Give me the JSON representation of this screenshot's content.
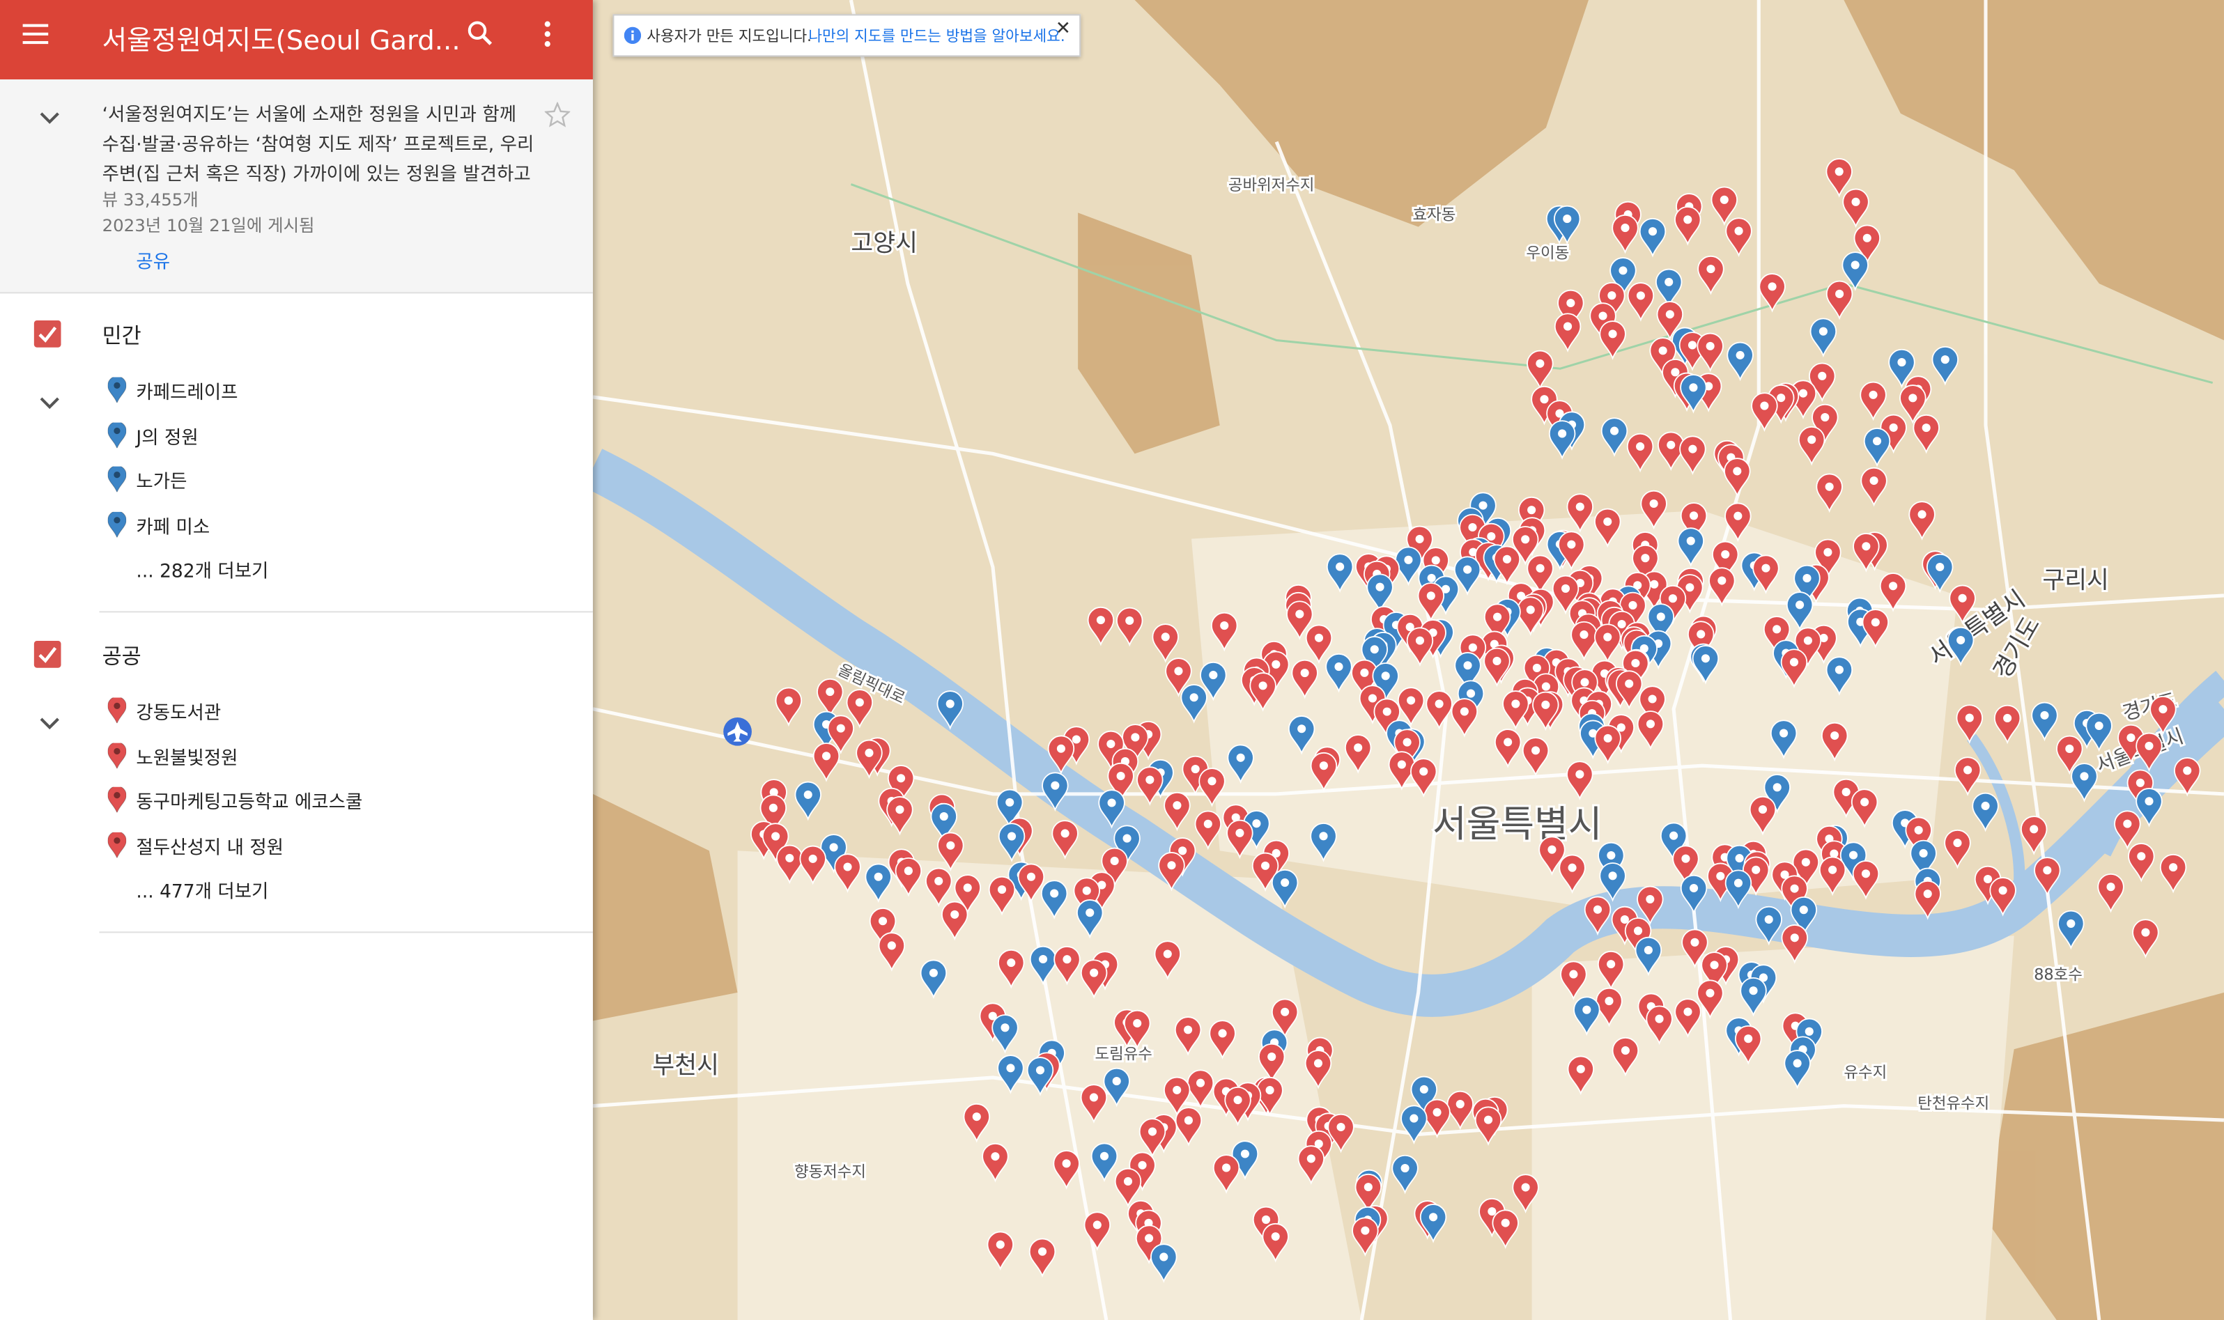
{
  "header": {
    "title": "서울정원여지도(Seoul Gard..."
  },
  "description": {
    "lines": [
      "‘서울정원여지도’는 서울에 소재한 정원을 시민과 함께",
      "수집·발굴·공유하는 ‘참여형 지도 제작’ 프로젝트로, 우리",
      "주변(집 근처 혹은 직장) 가까이에 있는 정원을 발견하고"
    ],
    "views": "뷰 33,455개",
    "published": "2023년 10월 21일에 게시됨",
    "share": "공유"
  },
  "layers": [
    {
      "name": "민간",
      "items": [
        "카페드레이프",
        "J의 정원",
        "노가든",
        "카페 미소"
      ],
      "more": "... 282개 더보기"
    },
    {
      "name": "공공",
      "items": [
        "강동도서관",
        "노원불빛정원",
        "동구마케팅고등학교 에코스쿨",
        "절두산성지 내 정원"
      ],
      "more": "... 477개 더보기"
    }
  ],
  "notice": {
    "text": "사용자가 만든 지도입니다.",
    "link": "나만의 지도를 만드는 방법을 알아보세요."
  },
  "map_labels": [
    "고양시",
    "부천시",
    "구리시",
    "서울특별시",
    "서울특별시",
    "경기도",
    "경기도",
    "서울특별시",
    "공바위저수지",
    "효자동",
    "우이동",
    "도림유수",
    "88호수",
    "유수지",
    "탄천유수지",
    "향동저수지",
    "올림픽대로"
  ]
}
